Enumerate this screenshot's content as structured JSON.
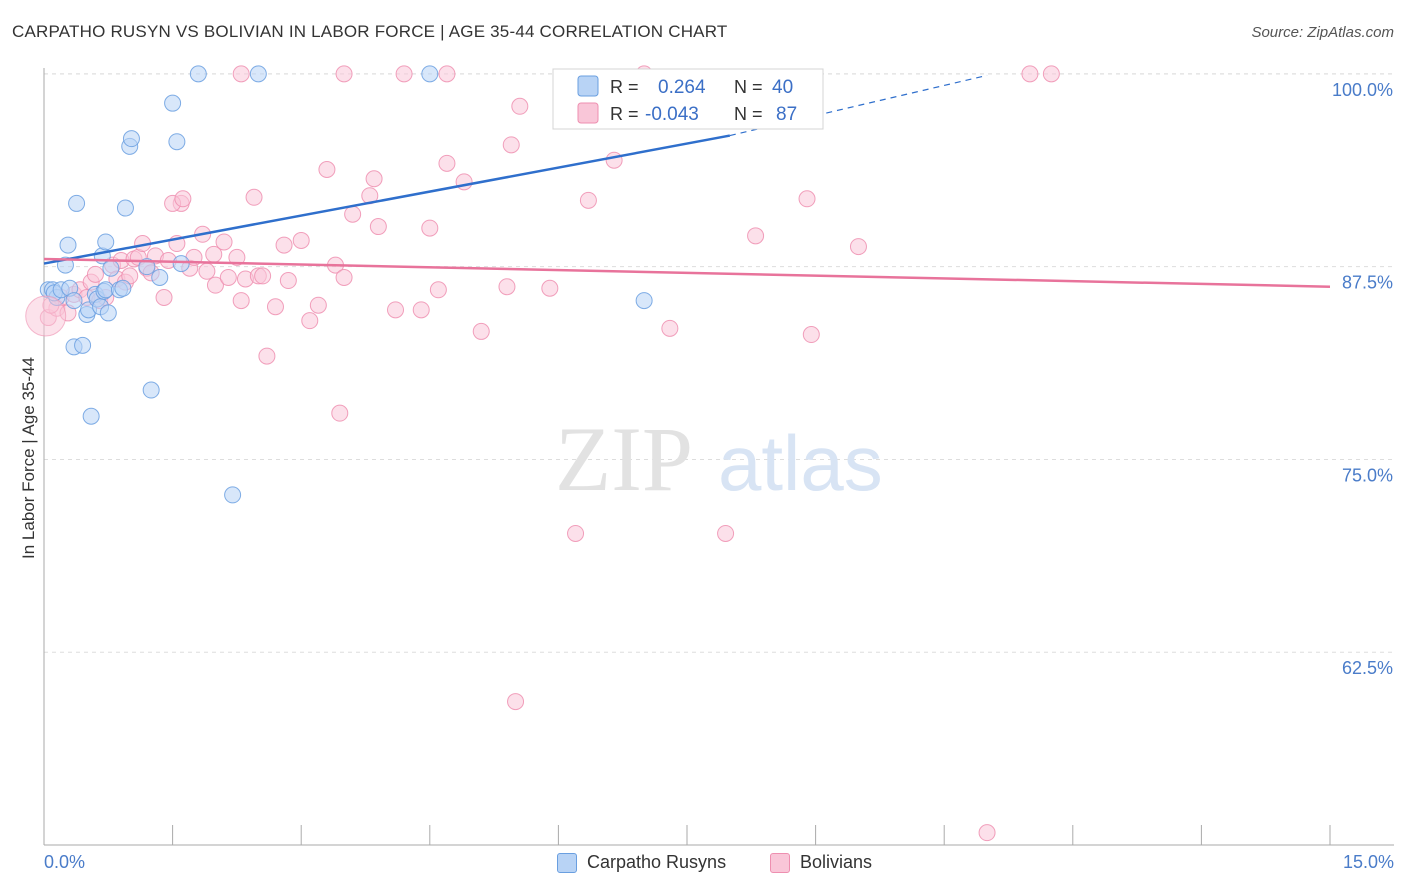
{
  "title": "CARPATHO RUSYN VS BOLIVIAN IN LABOR FORCE | AGE 35-44 CORRELATION CHART",
  "source": "Source: ZipAtlas.com",
  "watermark": {
    "zip": "ZIP",
    "atlas": "atlas"
  },
  "colors": {
    "blue_fill": "#b8d3f5",
    "blue_stroke": "#6a9fe0",
    "blue_line": "#2f6fcc",
    "pink_fill": "#f9c6d8",
    "pink_stroke": "#ee8fb0",
    "pink_line": "#e8739b",
    "tick_label": "#4a7cc9",
    "grid": "#dddddd"
  },
  "legend": [
    {
      "r_label": "R =",
      "r_value": "0.264",
      "n_label": "N =",
      "n_value": "40"
    },
    {
      "r_label": "R =",
      "r_value": "-0.043",
      "n_label": "N =",
      "n_value": "87"
    }
  ],
  "chart_data": {
    "type": "scatter",
    "title": "CARPATHO RUSYN VS BOLIVIAN IN LABOR FORCE | AGE 35-44 CORRELATION CHART",
    "xlabel": "",
    "ylabel": "In Labor Force | Age 35-44",
    "xlim": [
      0,
      15
    ],
    "ylim": [
      50,
      100.9
    ],
    "x_tick_labels": [
      "0.0%",
      "15.0%"
    ],
    "y_ticks": [
      62.5,
      75.0,
      87.5,
      100.0
    ],
    "y_tick_labels": [
      "62.5%",
      "75.0%",
      "87.5%",
      "100.0%"
    ],
    "grid": true,
    "legend_position": "top-center",
    "series": [
      {
        "name": "Carpatho Rusyns",
        "color": "#6a9fe0",
        "r": 0.264,
        "n": 40,
        "trend": {
          "x": [
            0.0,
            8.0
          ],
          "y": [
            87.7,
            96.0
          ],
          "dashed_to": [
            11.0,
            99.9
          ]
        },
        "points": [
          [
            0.05,
            86.0
          ],
          [
            0.1,
            86.0
          ],
          [
            0.15,
            85.5
          ],
          [
            0.12,
            85.8
          ],
          [
            0.2,
            86.0
          ],
          [
            0.3,
            86.1
          ],
          [
            0.35,
            85.3
          ],
          [
            0.25,
            87.6
          ],
          [
            0.28,
            88.9
          ],
          [
            0.38,
            91.6
          ],
          [
            0.5,
            84.4
          ],
          [
            0.52,
            84.7
          ],
          [
            0.6,
            85.7
          ],
          [
            0.62,
            85.4
          ],
          [
            0.66,
            84.9
          ],
          [
            0.68,
            88.2
          ],
          [
            0.7,
            85.9
          ],
          [
            0.72,
            86.0
          ],
          [
            0.75,
            84.5
          ],
          [
            0.72,
            89.1
          ],
          [
            0.78,
            87.4
          ],
          [
            0.88,
            86.0
          ],
          [
            0.92,
            86.1
          ],
          [
            0.95,
            91.3
          ],
          [
            1.0,
            95.3
          ],
          [
            1.02,
            95.8
          ],
          [
            1.2,
            87.5
          ],
          [
            1.35,
            86.8
          ],
          [
            1.25,
            79.5
          ],
          [
            1.5,
            98.1
          ],
          [
            1.55,
            95.6
          ],
          [
            1.6,
            87.7
          ],
          [
            0.35,
            82.3
          ],
          [
            0.45,
            82.4
          ],
          [
            0.55,
            77.8
          ],
          [
            1.8,
            100.0
          ],
          [
            2.2,
            72.7
          ],
          [
            2.5,
            100.0
          ],
          [
            4.5,
            100.0
          ],
          [
            7.0,
            85.3
          ]
        ]
      },
      {
        "name": "Bolivians",
        "color": "#ee8fb0",
        "r": -0.043,
        "n": 87,
        "trend": {
          "x": [
            0.0,
            15.0
          ],
          "y": [
            88.0,
            86.2
          ]
        },
        "points": [
          [
            0.05,
            84.2
          ],
          [
            0.15,
            84.8
          ],
          [
            0.2,
            85.5
          ],
          [
            0.28,
            84.5
          ],
          [
            0.35,
            85.7
          ],
          [
            0.42,
            86.0
          ],
          [
            0.5,
            85.5
          ],
          [
            0.55,
            86.5
          ],
          [
            0.6,
            87.0
          ],
          [
            0.65,
            85.3
          ],
          [
            0.72,
            85.5
          ],
          [
            0.8,
            87.6
          ],
          [
            0.85,
            86.7
          ],
          [
            0.9,
            87.9
          ],
          [
            0.95,
            86.5
          ],
          [
            1.05,
            88.0
          ],
          [
            1.1,
            88.1
          ],
          [
            1.15,
            89.0
          ],
          [
            1.2,
            87.4
          ],
          [
            1.25,
            87.1
          ],
          [
            1.3,
            88.2
          ],
          [
            1.4,
            85.5
          ],
          [
            1.45,
            87.9
          ],
          [
            1.6,
            91.6
          ],
          [
            1.5,
            91.6
          ],
          [
            1.55,
            89.0
          ],
          [
            1.62,
            91.9
          ],
          [
            1.7,
            87.4
          ],
          [
            1.75,
            88.1
          ],
          [
            1.85,
            89.6
          ],
          [
            1.9,
            87.2
          ],
          [
            1.98,
            88.3
          ],
          [
            2.0,
            86.3
          ],
          [
            2.1,
            89.1
          ],
          [
            2.15,
            86.8
          ],
          [
            2.25,
            88.1
          ],
          [
            2.3,
            85.3
          ],
          [
            2.35,
            86.7
          ],
          [
            2.45,
            92.0
          ],
          [
            2.5,
            86.9
          ],
          [
            2.55,
            86.9
          ],
          [
            2.7,
            84.9
          ],
          [
            2.8,
            88.9
          ],
          [
            2.85,
            86.6
          ],
          [
            3.0,
            89.2
          ],
          [
            3.1,
            84.0
          ],
          [
            3.2,
            85.0
          ],
          [
            3.3,
            93.8
          ],
          [
            3.4,
            87.6
          ],
          [
            3.5,
            86.8
          ],
          [
            3.6,
            90.9
          ],
          [
            3.8,
            92.1
          ],
          [
            3.85,
            93.2
          ],
          [
            3.9,
            90.1
          ],
          [
            4.1,
            84.7
          ],
          [
            4.4,
            84.7
          ],
          [
            4.5,
            90.0
          ],
          [
            4.6,
            86.0
          ],
          [
            4.7,
            94.2
          ],
          [
            4.9,
            93.0
          ],
          [
            5.1,
            83.3
          ],
          [
            5.4,
            86.2
          ],
          [
            5.45,
            95.4
          ],
          [
            5.55,
            97.9
          ],
          [
            5.9,
            86.1
          ],
          [
            6.35,
            91.8
          ],
          [
            6.65,
            94.4
          ],
          [
            7.3,
            83.5
          ],
          [
            8.3,
            89.5
          ],
          [
            8.9,
            91.9
          ],
          [
            8.95,
            83.1
          ],
          [
            9.5,
            88.8
          ],
          [
            2.6,
            81.7
          ],
          [
            3.45,
            78.0
          ],
          [
            6.2,
            70.2
          ],
          [
            7.95,
            70.2
          ],
          [
            5.5,
            59.3
          ],
          [
            11.0,
            50.8
          ],
          [
            2.3,
            100.0
          ],
          [
            3.5,
            100.0
          ],
          [
            4.2,
            100.0
          ],
          [
            4.7,
            100.0
          ],
          [
            7.0,
            100.0
          ],
          [
            11.5,
            100.0
          ],
          [
            11.75,
            100.0
          ],
          [
            0.08,
            85.0
          ],
          [
            1.0,
            86.9
          ]
        ]
      }
    ]
  }
}
